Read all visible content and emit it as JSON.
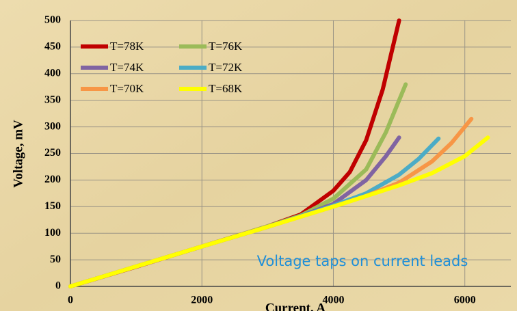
{
  "chart_data": {
    "type": "line",
    "xlabel": "Current, A",
    "ylabel": "Voltage, mV",
    "annotation": "Voltage taps on current leads",
    "xlim": [
      0,
      6700
    ],
    "xticks": [
      0,
      2000,
      4000,
      6000
    ],
    "ylim": [
      0,
      500
    ],
    "yticks": [
      0,
      50,
      100,
      150,
      200,
      250,
      300,
      350,
      400,
      450,
      500
    ],
    "grid": true,
    "series": [
      {
        "name": "T=78K",
        "color": "#c00000",
        "x": [
          0,
          1000,
          2000,
          3000,
          3500,
          4000,
          4250,
          4500,
          4750,
          5000
        ],
        "values": [
          0,
          37,
          75,
          113,
          135,
          180,
          215,
          275,
          370,
          500
        ]
      },
      {
        "name": "T=76K",
        "color": "#9bbb59",
        "x": [
          0,
          2000,
          3000,
          3500,
          4000,
          4500,
          4800,
          5100
        ],
        "values": [
          0,
          75,
          113,
          133,
          165,
          220,
          290,
          380
        ]
      },
      {
        "name": "T=74K",
        "color": "#8064a2",
        "x": [
          0,
          2000,
          3000,
          3500,
          4000,
          4500,
          4800,
          5000
        ],
        "values": [
          0,
          75,
          112,
          132,
          155,
          200,
          245,
          280
        ]
      },
      {
        "name": "T=72K",
        "color": "#4bacc6",
        "x": [
          0,
          2000,
          3000,
          4000,
          4500,
          5000,
          5300,
          5600
        ],
        "values": [
          0,
          75,
          112,
          152,
          175,
          210,
          240,
          278
        ]
      },
      {
        "name": "T=70K",
        "color": "#f79646",
        "x": [
          0,
          2000,
          3000,
          4000,
          4500,
          5000,
          5500,
          5800,
          6100
        ],
        "values": [
          0,
          75,
          112,
          150,
          170,
          195,
          235,
          270,
          315
        ]
      },
      {
        "name": "T=68K",
        "color": "#ffff00",
        "x": [
          0,
          2000,
          3000,
          4000,
          5000,
          5500,
          6000,
          6350
        ],
        "values": [
          0,
          75,
          112,
          150,
          190,
          213,
          245,
          280
        ]
      }
    ]
  }
}
